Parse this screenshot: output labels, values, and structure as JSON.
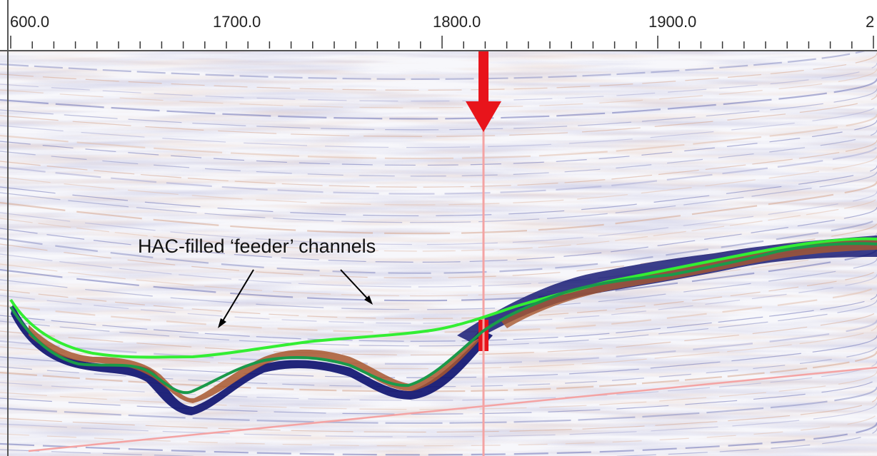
{
  "ruler": {
    "tick_labels": [
      "600.0",
      "1700.0",
      "1800.0",
      "1900.0",
      "2"
    ]
  },
  "section": {
    "annotation": "HAC-filled ‘feeder’ channels",
    "marker_icon": "down-arrow-icon",
    "colors": {
      "marker": "#e8141b",
      "cursor_line": "#f4a3a3",
      "horizon_upper": "#33ee33",
      "horizon_lower": "#1a9a4a",
      "trough_fill": "#0b0f6e",
      "peak_fill": "#a8572e"
    }
  }
}
